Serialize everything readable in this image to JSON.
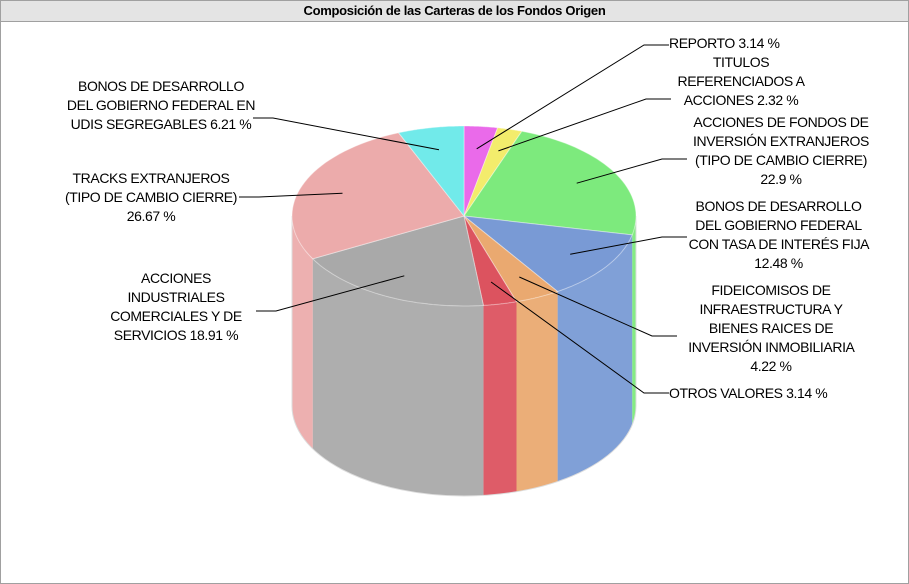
{
  "chart_data": {
    "type": "pie",
    "title": "Composición de las Carteras de los Fondos Origen",
    "categories": [
      "REPORTO",
      "TITULOS REFERENCIADOS A ACCIONES",
      "ACCIONES DE FONDOS DE INVERSIÓN EXTRANJEROS  (TIPO DE CAMBIO CIERRE)",
      "BONOS DE DESARROLLO DEL GOBIERNO FEDERAL CON TASA DE INTERÉS FIJA",
      "FIDEICOMISOS DE INFRAESTRUCTURA Y BIENES RAICES DE INVERSIÓN INMOBILIARIA",
      "OTROS VALORES",
      "ACCIONES INDUSTRIALES COMERCIALES Y DE SERVICIOS",
      "TRACKS EXTRANJEROS (TIPO DE CAMBIO CIERRE)",
      "BONOS DE DESARROLLO DEL GOBIERNO FEDERAL EN UDIS SEGREGABLES"
    ],
    "values": [
      3.14,
      2.32,
      22.9,
      12.48,
      4.22,
      3.14,
      18.91,
      26.67,
      6.21
    ],
    "value_labels": [
      "3.14 %",
      "2.32 %",
      "22.9 %",
      "12.48 %",
      "4.22 %",
      "3.14 %",
      "18.91 %",
      "26.67 %",
      "6.21 %"
    ],
    "colors": [
      "#e85ae8",
      "#f2ea5c",
      "#6fe86f",
      "#6a8fd0",
      "#e8a060",
      "#d8404e",
      "#a0a0a0",
      "#eaa2a2",
      "#62e8e8"
    ]
  }
}
